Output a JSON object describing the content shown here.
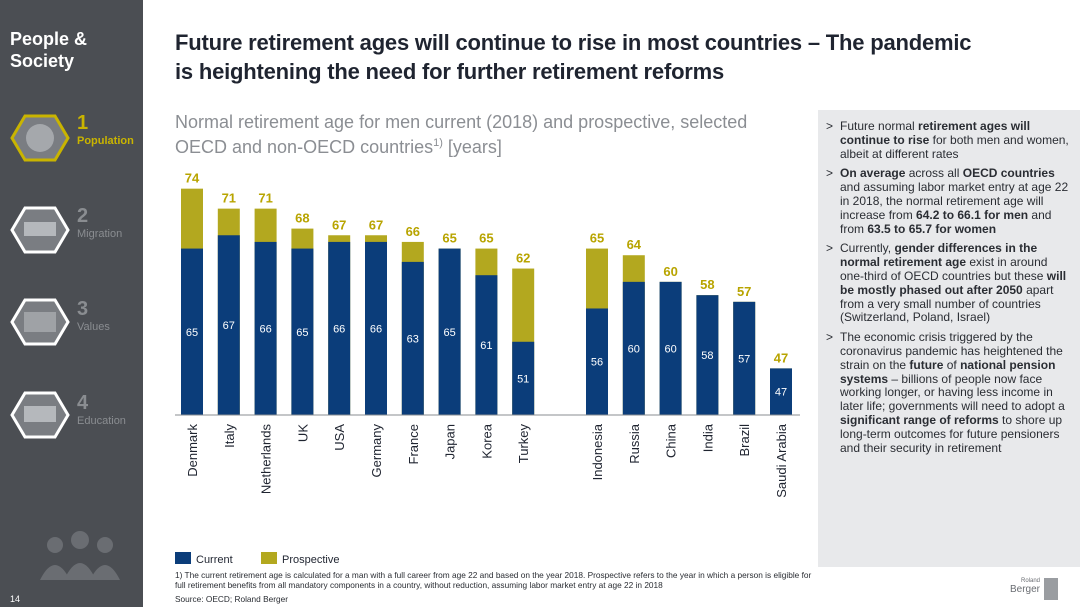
{
  "sidebar": {
    "heading": "People & Society",
    "items": [
      {
        "number": "1",
        "label": "Population"
      },
      {
        "number": "2",
        "label": "Migration"
      },
      {
        "number": "3",
        "label": "Values"
      },
      {
        "number": "4",
        "label": "Education"
      }
    ],
    "page_number": "14"
  },
  "header": {
    "title": "Future retirement ages will continue to rise in most countries – The pandemic is heightening the need for further retirement reforms"
  },
  "chart_data": {
    "type": "bar",
    "subtitle": "Normal retirement age for men current (2018) and prospective, selected OECD and non-OECD countries",
    "subtitle_note": "1)",
    "unit": "[years]",
    "categories": [
      "Denmark",
      "Italy",
      "Netherlands",
      "UK",
      "USA",
      "Germany",
      "France",
      "Japan",
      "Korea",
      "Turkey",
      "Indonesia",
      "Russia",
      "China",
      "India",
      "Brazil",
      "Saudi Arabia"
    ],
    "series": [
      {
        "name": "Current",
        "color": "#0b3d7a",
        "values": [
          65,
          67,
          66,
          65,
          66,
          66,
          63,
          65,
          61,
          51,
          56,
          60,
          60,
          58,
          57,
          47
        ]
      },
      {
        "name": "Prospective",
        "color": "#b3a81f",
        "values": [
          74,
          71,
          71,
          68,
          67,
          67,
          66,
          65,
          65,
          62,
          65,
          64,
          60,
          58,
          57,
          47
        ]
      }
    ],
    "ylim": [
      40,
      75
    ]
  },
  "panel": {
    "bullet_marker": ">",
    "bullets": [
      [
        {
          "text": "Future normal ",
          "bold": false
        },
        {
          "text": "retirement ages will continue to rise",
          "bold": true
        },
        {
          "text": " for both men and women, albeit at different rates",
          "bold": false
        }
      ],
      [
        {
          "text": "On average",
          "bold": true
        },
        {
          "text": " across all ",
          "bold": false
        },
        {
          "text": "OECD countries",
          "bold": true
        },
        {
          "text": " and assuming labor market entry at age 22 in 2018, the normal retirement age will increase from ",
          "bold": false
        },
        {
          "text": "64.2 to 66.1 for men",
          "bold": true
        },
        {
          "text": " and from ",
          "bold": false
        },
        {
          "text": "63.5 to 65.7 for women",
          "bold": true
        }
      ],
      [
        {
          "text": "Currently, ",
          "bold": false
        },
        {
          "text": "gender differences in the normal retirement age",
          "bold": true
        },
        {
          "text": " exist in around one-third of OECD countries but these ",
          "bold": false
        },
        {
          "text": "will be mostly phased out after 2050",
          "bold": true
        },
        {
          "text": " apart from a very small number of countries (Switzerland, Poland, Israel)",
          "bold": false
        }
      ],
      [
        {
          "text": "The economic crisis triggered by the coronavirus pandemic has heightened the strain on the ",
          "bold": false
        },
        {
          "text": "future",
          "bold": true
        },
        {
          "text": " of ",
          "bold": false
        },
        {
          "text": "national pension systems",
          "bold": true
        },
        {
          "text": " – billions of people now face working longer, or having less income in later life; governments will need to adopt a ",
          "bold": false
        },
        {
          "text": "significant range of reforms",
          "bold": true
        },
        {
          "text": " to shore up long-term outcomes for future pensioners and their security in retirement",
          "bold": false
        }
      ]
    ]
  },
  "footer": {
    "footnote": "1) The current retirement age is calculated for a man with a full career from age 22 and based on the year 2018. Prospective refers to the year in which a person is eligible for full retirement benefits from all mandatory components in a country, without reduction, assuming labor market entry at age 22 in 2018",
    "source": "Source: OECD; Roland Berger",
    "logo_top": "Roland",
    "logo_bottom": "Berger"
  }
}
